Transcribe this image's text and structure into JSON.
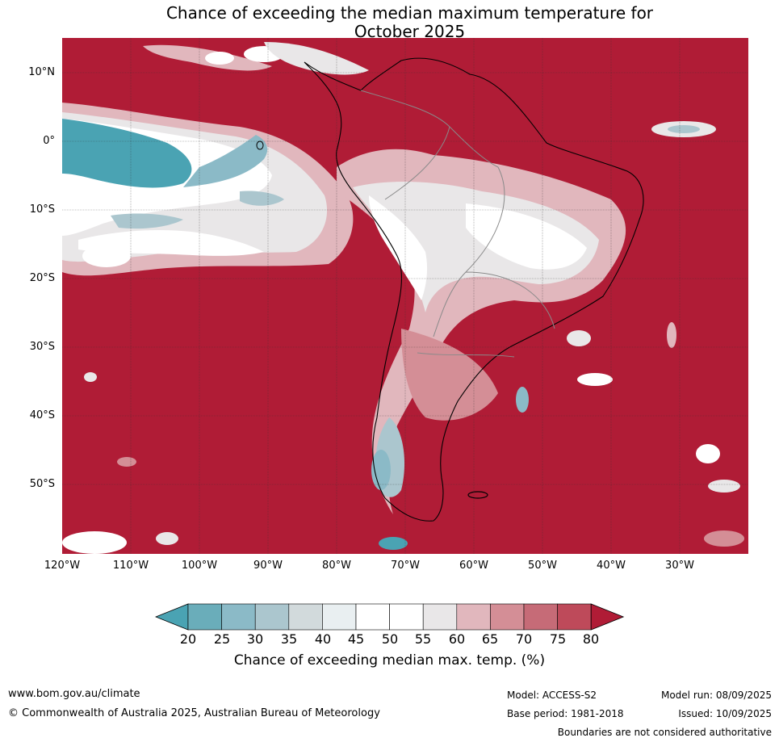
{
  "title": {
    "line1": "Chance of exceeding the median maximum temperature for",
    "line2": "October 2025"
  },
  "map": {
    "region": "South America",
    "background_color": "#b01c36",
    "lat_labels": [
      "10°N",
      "0°",
      "10°S",
      "20°S",
      "30°S",
      "40°S",
      "50°S"
    ],
    "lon_labels": [
      "120°W",
      "110°W",
      "100°W",
      "90°W",
      "80°W",
      "70°W",
      "60°W",
      "50°W",
      "40°W",
      "30°W"
    ],
    "lat_range": [
      -60,
      15
    ],
    "lon_range": [
      -120,
      -20
    ]
  },
  "colorbar": {
    "ticks": [
      "20",
      "25",
      "30",
      "35",
      "40",
      "45",
      "50",
      "55",
      "60",
      "65",
      "70",
      "75",
      "80"
    ],
    "colors": [
      "#4aa3b3",
      "#6aadba",
      "#8bbac7",
      "#abc6ce",
      "#d2dadc",
      "#e9eff1",
      "#ffffff",
      "#ffffff",
      "#e9e7e8",
      "#e1b7bd",
      "#d48e96",
      "#c66b77",
      "#be4a5a",
      "#b01c36"
    ],
    "label": "Chance of exceeding median max. temp. (%)"
  },
  "footer": {
    "url": "www.bom.gov.au/climate",
    "copyright": "© Commonwealth of Australia 2025, Australian Bureau of Meteorology",
    "model": "Model: ACCESS-S2",
    "base_period": "Base period: 1981-2018",
    "model_run": "Model run: 08/09/2025",
    "issued": "Issued: 10/09/2025",
    "disclaimer": "Boundaries are not considered authoritative"
  }
}
